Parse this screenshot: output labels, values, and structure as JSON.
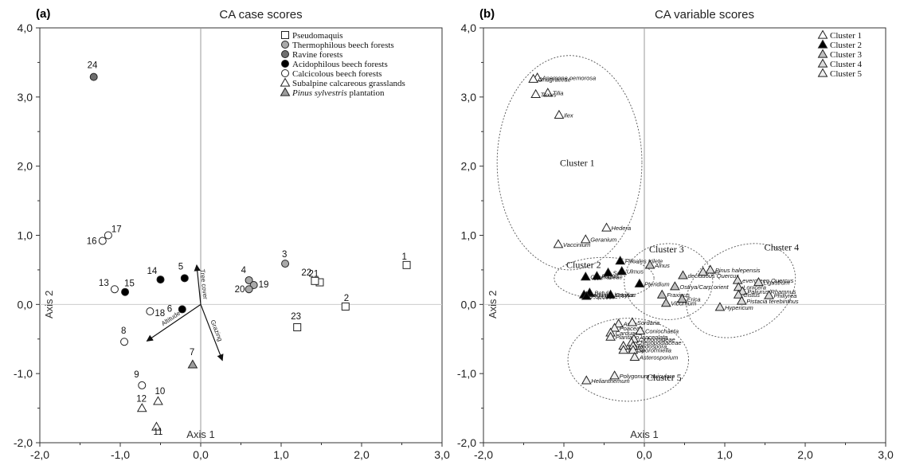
{
  "colors": {
    "pseudomaquis": "#ffffff",
    "thermophilous": "#a9a9a9",
    "ravine": "#6e6e6e",
    "acidophilous": "#000000",
    "calcicolous": "#ffffff",
    "subalpine": "#ffffff",
    "pinus": "#9e9e9e",
    "cluster1": "#ffffff",
    "cluster2": "#000000",
    "cluster3": "#c0c0c0",
    "cluster4": "#dcdcdc",
    "cluster5": "#eeeeee"
  },
  "chart_data": [
    {
      "type": "scatter",
      "panel_label": "(a)",
      "title": "CA case scores",
      "xlabel": "Axis 1",
      "ylabel": "Axis 2",
      "xlim": [
        -2.0,
        3.0
      ],
      "ylim": [
        -2.0,
        4.0
      ],
      "x_ticks": [
        "-2,0",
        "-1,0",
        "0,0",
        "1,0",
        "2,0",
        "3,0"
      ],
      "y_ticks": [
        "-2,0",
        "-1,0",
        "0,0",
        "1,0",
        "2,0",
        "3,0",
        "4,0"
      ],
      "legend_position": "top-right",
      "series": [
        {
          "name": "Pseudomaquis",
          "marker": "square",
          "fill": "pseudomaquis",
          "points": [
            {
              "label": "1",
              "x": 2.56,
              "y": 0.57
            },
            {
              "label": "2",
              "x": 1.8,
              "y": -0.03
            },
            {
              "label": "21",
              "x": 1.48,
              "y": 0.32
            },
            {
              "label": "22",
              "x": 1.42,
              "y": 0.34
            },
            {
              "label": "23",
              "x": 1.2,
              "y": -0.33
            }
          ]
        },
        {
          "name": "Thermophilous beech forests",
          "marker": "circle",
          "fill": "thermophilous",
          "points": [
            {
              "label": "3",
              "x": 1.05,
              "y": 0.59
            },
            {
              "label": "4",
              "x": 0.6,
              "y": 0.35
            },
            {
              "label": "19",
              "x": 0.66,
              "y": 0.28
            },
            {
              "label": "20",
              "x": 0.6,
              "y": 0.22
            }
          ]
        },
        {
          "name": "Ravine forests",
          "marker": "circle",
          "fill": "ravine",
          "points": [
            {
              "label": "24",
              "x": -1.33,
              "y": 3.29
            }
          ]
        },
        {
          "name": "Acidophilous beech forests",
          "marker": "circle",
          "fill": "acidophilous",
          "points": [
            {
              "label": "5",
              "x": -0.2,
              "y": 0.38
            },
            {
              "label": "6",
              "x": -0.23,
              "y": -0.07
            },
            {
              "label": "14",
              "x": -0.5,
              "y": 0.36
            },
            {
              "label": "15",
              "x": -0.94,
              "y": 0.18
            }
          ]
        },
        {
          "name": "Calcicolous beech forests",
          "marker": "circle",
          "fill": "calcicolous",
          "points": [
            {
              "label": "16",
              "x": -1.22,
              "y": 0.92
            },
            {
              "label": "17",
              "x": -1.15,
              "y": 1.0
            },
            {
              "label": "13",
              "x": -1.07,
              "y": 0.22
            },
            {
              "label": "18",
              "x": -0.63,
              "y": -0.1
            },
            {
              "label": "8",
              "x": -0.95,
              "y": -0.54
            },
            {
              "label": "9",
              "x": -0.73,
              "y": -1.17
            }
          ]
        },
        {
          "name": "Subalpine calcareous grasslands",
          "marker": "triangle",
          "fill": "subalpine",
          "points": [
            {
              "label": "10",
              "x": -0.53,
              "y": -1.4
            },
            {
              "label": "11",
              "x": -0.55,
              "y": -1.77
            },
            {
              "label": "12",
              "x": -0.73,
              "y": -1.5
            }
          ]
        },
        {
          "name": "Pinus sylvestris plantation",
          "marker": "triangle",
          "fill": "pinus",
          "points": [
            {
              "label": "7",
              "x": -0.1,
              "y": -0.87
            }
          ]
        }
      ],
      "vectors": [
        {
          "name": "Tree cover",
          "x": -0.05,
          "y": 0.57
        },
        {
          "name": "Altitude",
          "x": -0.67,
          "y": -0.53
        },
        {
          "name": "Grazing",
          "x": 0.27,
          "y": -0.81
        }
      ]
    },
    {
      "type": "scatter",
      "panel_label": "(b)",
      "title": "CA variable scores",
      "xlabel": "Axis 1",
      "ylabel": "Axis 2",
      "xlim": [
        -2.0,
        3.0
      ],
      "ylim": [
        -2.0,
        4.0
      ],
      "x_ticks": [
        "-2,0",
        "-1,0",
        "0,0",
        "1,0",
        "2,0",
        "3,0"
      ],
      "y_ticks": [
        "-2,0",
        "-1,0",
        "0,0",
        "1,0",
        "2,0",
        "3,0",
        "4,0"
      ],
      "legend_position": "top-right",
      "series": [
        {
          "name": "Cluster 1",
          "marker": "triangle",
          "fill": "cluster1",
          "points": [
            {
              "label": "Anemone nemorosa",
              "x": -1.33,
              "y": 3.28
            },
            {
              "label": "Onagraceae",
              "x": -1.38,
              "y": 3.26
            },
            {
              "label": "Tilia",
              "x": -1.2,
              "y": 3.06
            },
            {
              "label": "Taxus",
              "x": -1.35,
              "y": 3.04
            },
            {
              "label": "Ilex",
              "x": -1.06,
              "y": 2.74
            },
            {
              "label": "Hedera",
              "x": -0.47,
              "y": 1.11
            },
            {
              "label": "Geranium",
              "x": -0.73,
              "y": 0.94
            },
            {
              "label": "Vaccinium",
              "x": -1.07,
              "y": 0.87
            }
          ]
        },
        {
          "name": "Cluster 2",
          "marker": "triangle",
          "fill": "cluster2",
          "points": [
            {
              "label": "Filicales trilete",
              "x": -0.3,
              "y": 0.63
            },
            {
              "label": "Ulmus",
              "x": -0.28,
              "y": 0.48
            },
            {
              "label": "Fagus",
              "x": -0.59,
              "y": 0.41
            },
            {
              "label": "Salix",
              "x": -0.45,
              "y": 0.46
            },
            {
              "label": "Cyperaceae",
              "x": -0.73,
              "y": 0.4
            },
            {
              "label": "Pteridium",
              "x": -0.06,
              "y": 0.3
            },
            {
              "label": "Betula",
              "x": -0.68,
              "y": 0.17
            },
            {
              "label": "Corylus",
              "x": -0.42,
              "y": 0.14
            },
            {
              "label": "Carpinus betulus",
              "x": -0.75,
              "y": 0.14
            },
            {
              "label": "Populus",
              "x": -0.72,
              "y": 0.12
            }
          ]
        },
        {
          "name": "Cluster 3",
          "marker": "triangle",
          "fill": "cluster3",
          "points": [
            {
              "label": "Alnus",
              "x": 0.07,
              "y": 0.57
            },
            {
              "label": "deciduous Quercus",
              "x": 0.48,
              "y": 0.42
            },
            {
              "label": "Ostrya/Carp orient",
              "x": 0.38,
              "y": 0.26
            },
            {
              "label": "Fraxinus",
              "x": 0.22,
              "y": 0.14
            },
            {
              "label": "Erica",
              "x": 0.47,
              "y": 0.08
            },
            {
              "label": "Viburnum",
              "x": 0.27,
              "y": 0.02
            }
          ]
        },
        {
          "name": "Cluster 4",
          "marker": "triangle",
          "fill": "cluster4",
          "points": [
            {
              "label": "Acer",
              "x": 0.73,
              "y": 0.47
            },
            {
              "label": "Pinus halepensis",
              "x": 0.82,
              "y": 0.5
            },
            {
              "label": "evergreen Quercus",
              "x": 1.16,
              "y": 0.35
            },
            {
              "label": "Ligustrum",
              "x": 1.42,
              "y": 0.32
            },
            {
              "label": "Lonicera",
              "x": 1.17,
              "y": 0.25
            },
            {
              "label": "Paliurus/Rhamnus",
              "x": 1.22,
              "y": 0.19
            },
            {
              "label": "Cistus",
              "x": 1.17,
              "y": 0.14
            },
            {
              "label": "Phillyrea",
              "x": 1.55,
              "y": 0.13
            },
            {
              "label": "Pistacia terebinthus",
              "x": 1.21,
              "y": 0.05
            },
            {
              "label": "Hypericum",
              "x": 0.94,
              "y": -0.04
            }
          ]
        },
        {
          "name": "Cluster 5",
          "marker": "triangle",
          "fill": "cluster5",
          "points": [
            {
              "label": "Aster",
              "x": -0.32,
              "y": -0.28
            },
            {
              "label": "Sordaria",
              "x": -0.15,
              "y": -0.26
            },
            {
              "label": "Poaceae",
              "x": -0.37,
              "y": -0.34
            },
            {
              "label": "Carduaea",
              "x": -0.42,
              "y": -0.41
            },
            {
              "label": "Coniochaeta",
              "x": -0.05,
              "y": -0.38
            },
            {
              "label": "Plantago lanceolata",
              "x": -0.42,
              "y": -0.47
            },
            {
              "label": "Cichorioideae",
              "x": -0.13,
              "y": -0.5
            },
            {
              "label": "Chenopodiaceae",
              "x": -0.16,
              "y": -0.55
            },
            {
              "label": "Urtica",
              "x": -0.26,
              "y": -0.6
            },
            {
              "label": "Podospora",
              "x": -0.14,
              "y": -0.6
            },
            {
              "label": "Riccia",
              "x": -0.26,
              "y": -0.66
            },
            {
              "label": "Sporormiella",
              "x": -0.14,
              "y": -0.66
            },
            {
              "label": "Asterosporium",
              "x": -0.12,
              "y": -0.76
            },
            {
              "label": "Polygonum aviculare",
              "x": -0.37,
              "y": -1.03
            },
            {
              "label": "Helianthemum",
              "x": -0.72,
              "y": -1.1
            }
          ]
        }
      ],
      "cluster_labels": [
        "Cluster 1",
        "Cluster 2",
        "Cluster 3",
        "Cluster 4",
        "Cluster 5"
      ]
    }
  ]
}
